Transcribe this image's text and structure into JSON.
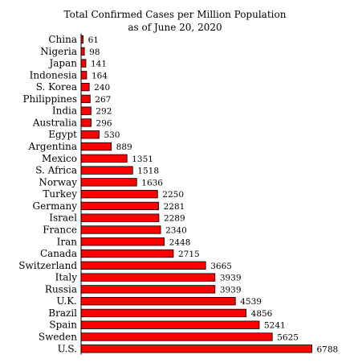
{
  "chart_data": {
    "type": "bar",
    "orientation": "horizontal",
    "title": "Total Confirmed Cases per Million Population",
    "subtitle": "as of June 20, 2020",
    "xlabel": "",
    "ylabel": "",
    "grid": false,
    "xlim": [
      0,
      7100
    ],
    "categories": [
      "China",
      "Nigeria",
      "Japan",
      "Indonesia",
      "S. Korea",
      "Philippines",
      "India",
      "Australia",
      "Egypt",
      "Argentina",
      "Mexico",
      "S. Africa",
      "Norway",
      "Turkey",
      "Germany",
      "Israel",
      "France",
      "Iran",
      "Canada",
      "Switzerland",
      "Italy",
      "Russia",
      "U.K.",
      "Brazil",
      "Spain",
      "Sweden",
      "U.S."
    ],
    "values": [
      61,
      98,
      141,
      164,
      240,
      267,
      292,
      296,
      530,
      889,
      1351,
      1518,
      1636,
      2250,
      2281,
      2289,
      2340,
      2448,
      2715,
      3665,
      3939,
      3939,
      4539,
      4856,
      5241,
      5625,
      6788
    ],
    "value_labels": [
      "61",
      "98",
      "141",
      "164",
      "240",
      "267",
      "292",
      "296",
      "530",
      "889",
      "1351",
      "1518",
      "1636",
      "2250",
      "2281",
      "2289",
      "2340",
      "2448",
      "2715",
      "3665",
      "3939",
      "3939",
      "4539",
      "4856",
      "5241",
      "5625",
      "6788"
    ],
    "bar_color": "#ff0000",
    "bar_stroke": "#000000"
  }
}
